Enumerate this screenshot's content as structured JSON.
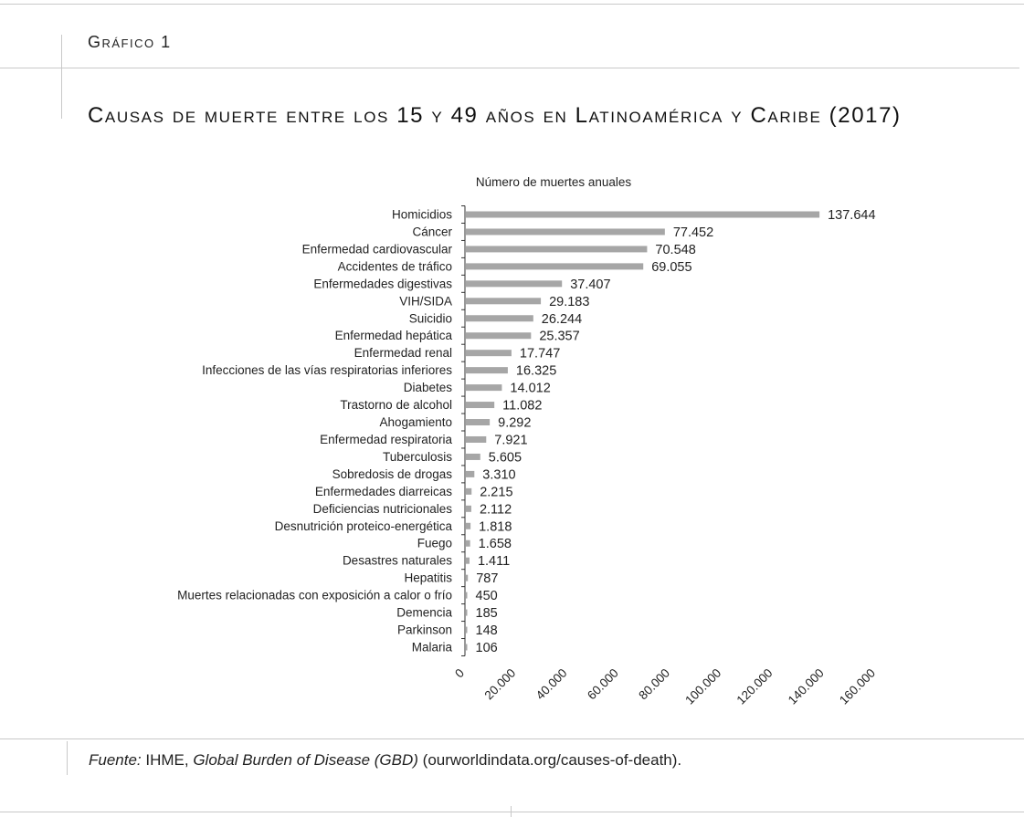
{
  "figure_label": "Gráfico 1",
  "title": "Causas de muerte entre los 15 y 49 años en Latinoamérica y Caribe (2017)",
  "source": {
    "prefix": "Fuente:",
    "org": " IHME, ",
    "dataset": "Global Burden of Disease (GBD)",
    "suffix": " (ourworldindata.org/causes-of-death)."
  },
  "chart_data": {
    "type": "bar",
    "orientation": "horizontal",
    "subtitle": "Número de muertes anuales",
    "categories": [
      "Homicidios",
      "Cáncer",
      "Enfermedad cardiovascular",
      "Accidentes de tráfico",
      "Enfermedades digestivas",
      "VIH/SIDA",
      "Suicidio",
      "Enfermedad hepática",
      "Enfermedad renal",
      "Infecciones de las vías respiratorias inferiores",
      "Diabetes",
      "Trastorno de alcohol",
      "Ahogamiento",
      "Enfermedad respiratoria",
      "Tuberculosis",
      "Sobredosis de drogas",
      "Enfermedades diarreicas",
      "Deficiencias nutricionales",
      "Desnutrición proteico-energética",
      "Fuego",
      "Desastres naturales",
      "Hepatitis",
      "Muertes relacionadas con exposición a calor o frío",
      "Demencia",
      "Parkinson",
      "Malaria"
    ],
    "values": [
      137644,
      77452,
      70548,
      69055,
      37407,
      29183,
      26244,
      25357,
      17747,
      16325,
      14012,
      11082,
      9292,
      7921,
      5605,
      3310,
      2215,
      2112,
      1818,
      1658,
      1411,
      787,
      450,
      185,
      148,
      106
    ],
    "value_labels": [
      "137.644",
      "77.452",
      "70.548",
      "69.055",
      "37.407",
      "29.183",
      "26.244",
      "25.357",
      "17.747",
      "16.325",
      "14.012",
      "11.082",
      "9.292",
      "7.921",
      "5.605",
      "3.310",
      "2.215",
      "2.112",
      "1.818",
      "1.658",
      "1.411",
      "787",
      "450",
      "185",
      "148",
      "106"
    ],
    "xlim": [
      0,
      160000
    ],
    "xticks": [
      0,
      20000,
      40000,
      60000,
      80000,
      100000,
      120000,
      140000,
      160000
    ],
    "xtick_labels": [
      "0",
      "20.000",
      "40.000",
      "60.000",
      "80.000",
      "100.000",
      "120.000",
      "140.000",
      "160.000"
    ],
    "grid": false,
    "legend": "none",
    "bar_color": "#a6a6a6"
  }
}
